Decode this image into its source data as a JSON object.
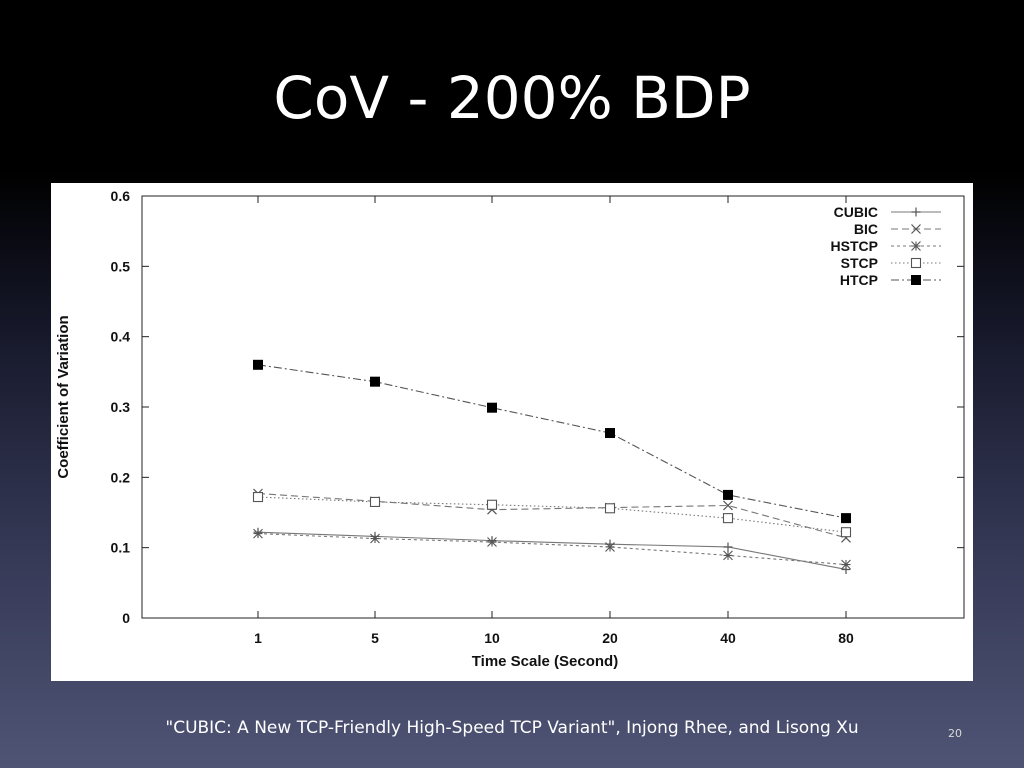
{
  "slide": {
    "title": "CoV - 200% BDP",
    "citation": "\"CUBIC: A New TCP-Friendly High-Speed TCP Variant\", Injong Rhee, and Lisong Xu",
    "page_number": "20"
  },
  "chart_data": {
    "type": "line",
    "title": "",
    "xlabel": "Time Scale (Second)",
    "ylabel": "Coefficient of Variation",
    "categories": [
      "1",
      "5",
      "10",
      "20",
      "40",
      "80"
    ],
    "ylim": [
      0,
      0.6
    ],
    "yticks": [
      "0",
      "0.1",
      "0.2",
      "0.3",
      "0.4",
      "0.5",
      "0.6"
    ],
    "legend_position": "top-right",
    "grid": false,
    "series": [
      {
        "name": "CUBIC",
        "marker": "plus",
        "dash": "solid",
        "color": "#777777",
        "values": [
          0.122,
          0.116,
          0.11,
          0.105,
          0.101,
          0.069
        ]
      },
      {
        "name": "BIC",
        "marker": "cross",
        "dash": "dashed",
        "color": "#777777",
        "values": [
          0.177,
          0.166,
          0.154,
          0.157,
          0.16,
          0.114
        ]
      },
      {
        "name": "HSTCP",
        "marker": "star",
        "dash": "dotted-dashed",
        "color": "#777777",
        "values": [
          0.12,
          0.113,
          0.108,
          0.101,
          0.089,
          0.076
        ]
      },
      {
        "name": "STCP",
        "marker": "square-open",
        "dash": "dotted",
        "color": "#777777",
        "values": [
          0.172,
          0.165,
          0.161,
          0.156,
          0.142,
          0.122
        ]
      },
      {
        "name": "HTCP",
        "marker": "square-filled",
        "dash": "dash-dot",
        "color": "#555555",
        "values": [
          0.36,
          0.336,
          0.299,
          0.263,
          0.175,
          0.142
        ]
      }
    ]
  }
}
